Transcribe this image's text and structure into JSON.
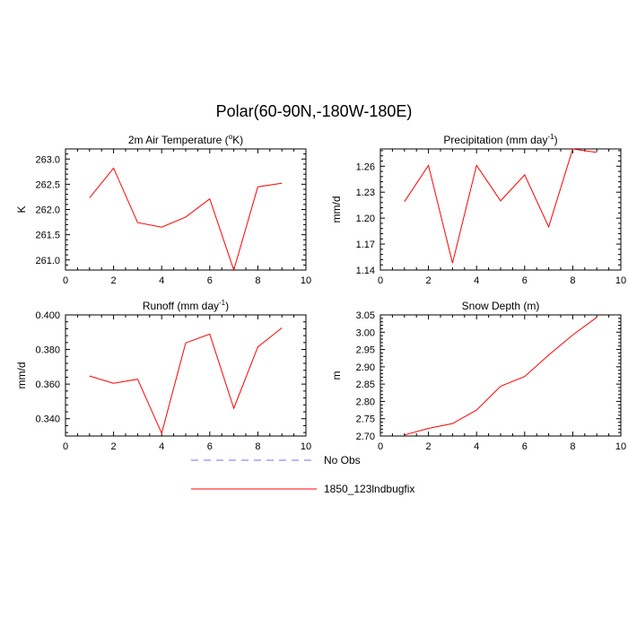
{
  "figure": {
    "title": "Polar(60-90N,-180W-180E)"
  },
  "chart_data": [
    {
      "type": "line",
      "title": "2m Air Temperature (°K)",
      "title_parts": {
        "pre": "2m Air Temperature (",
        "sup": "o",
        "post": "K)"
      },
      "xlabel": "",
      "ylabel": "K",
      "xlim": [
        0,
        10
      ],
      "ylim": [
        260.8,
        263.2
      ],
      "x_ticks": [
        0,
        2,
        4,
        6,
        8,
        10
      ],
      "x_tick_labels": [
        "0",
        "2",
        "4",
        "6",
        "8",
        "10"
      ],
      "y_ticks": [
        261.0,
        261.5,
        262.0,
        262.5,
        263.0
      ],
      "y_tick_labels": [
        "261.0",
        "261.5",
        "262.0",
        "262.5",
        "263.0"
      ],
      "x": [
        1,
        2,
        3,
        4,
        5,
        6,
        7,
        8,
        9
      ],
      "series": [
        {
          "name": "1850_123lndbugfix",
          "color": "#ff0000",
          "values": [
            262.23,
            262.82,
            261.74,
            261.65,
            261.85,
            262.21,
            260.8,
            262.45,
            262.52
          ]
        }
      ]
    },
    {
      "type": "line",
      "title": "Precipitation (mm day-1)",
      "title_parts": {
        "pre": "Precipitation (mm day",
        "sup": "-1",
        "post": ")"
      },
      "xlabel": "",
      "ylabel": "mm/d",
      "xlim": [
        0,
        10
      ],
      "ylim": [
        1.14,
        1.28
      ],
      "x_ticks": [
        0,
        2,
        4,
        6,
        8,
        10
      ],
      "x_tick_labels": [
        "0",
        "2",
        "4",
        "6",
        "8",
        "10"
      ],
      "y_ticks": [
        1.14,
        1.17,
        1.2,
        1.23,
        1.26
      ],
      "y_tick_labels": [
        "1.14",
        "1.17",
        "1.20",
        "1.23",
        "1.26"
      ],
      "x": [
        1,
        2,
        3,
        4,
        5,
        6,
        7,
        8,
        9
      ],
      "series": [
        {
          "name": "1850_123lndbugfix",
          "color": "#ff0000",
          "values": [
            1.219,
            1.261,
            1.148,
            1.261,
            1.22,
            1.25,
            1.19,
            1.28,
            1.276
          ]
        }
      ]
    },
    {
      "type": "line",
      "title": "Runoff (mm day-1)",
      "title_parts": {
        "pre": "Runoff (mm day",
        "sup": "-1",
        "post": ")"
      },
      "xlabel": "",
      "ylabel": "mm/d",
      "xlim": [
        0,
        10
      ],
      "ylim": [
        0.33,
        0.4
      ],
      "x_ticks": [
        0,
        2,
        4,
        6,
        8,
        10
      ],
      "x_tick_labels": [
        "0",
        "2",
        "4",
        "6",
        "8",
        "10"
      ],
      "y_ticks": [
        0.34,
        0.36,
        0.38,
        0.4
      ],
      "y_tick_labels": [
        "0.340",
        "0.360",
        "0.380",
        "0.400"
      ],
      "x": [
        1,
        2,
        3,
        4,
        5,
        6,
        7,
        8,
        9
      ],
      "series": [
        {
          "name": "1850_123lndbugfix",
          "color": "#ff0000",
          "values": [
            0.3647,
            0.3605,
            0.3628,
            0.3316,
            0.3838,
            0.3889,
            0.346,
            0.3815,
            0.3925
          ]
        }
      ]
    },
    {
      "type": "line",
      "title": "Snow Depth (m)",
      "title_parts": {
        "pre": "Snow Depth (m)",
        "sup": "",
        "post": ""
      },
      "xlabel": "",
      "ylabel": "m",
      "xlim": [
        0,
        10
      ],
      "ylim": [
        2.7,
        3.05
      ],
      "x_ticks": [
        0,
        2,
        4,
        6,
        8,
        10
      ],
      "x_tick_labels": [
        "0",
        "2",
        "4",
        "6",
        "8",
        "10"
      ],
      "y_ticks": [
        2.7,
        2.75,
        2.8,
        2.85,
        2.9,
        2.95,
        3.0,
        3.05
      ],
      "y_tick_labels": [
        "2.70",
        "2.75",
        "2.80",
        "2.85",
        "2.90",
        "2.95",
        "3.00",
        "3.05"
      ],
      "x": [
        1,
        2,
        3,
        4,
        5,
        6,
        7,
        8,
        9
      ],
      "series": [
        {
          "name": "1850_123lndbugfix",
          "color": "#ff0000",
          "values": [
            2.703,
            2.722,
            2.736,
            2.775,
            2.844,
            2.872,
            2.934,
            2.992,
            3.043
          ]
        }
      ]
    }
  ],
  "legend": {
    "placement": "bottom-center",
    "items": [
      {
        "label": "No Obs",
        "color": "#7070ff",
        "style": "dashed"
      },
      {
        "label": "1850_123lndbugfix",
        "color": "#ff0000",
        "style": "solid"
      }
    ]
  }
}
